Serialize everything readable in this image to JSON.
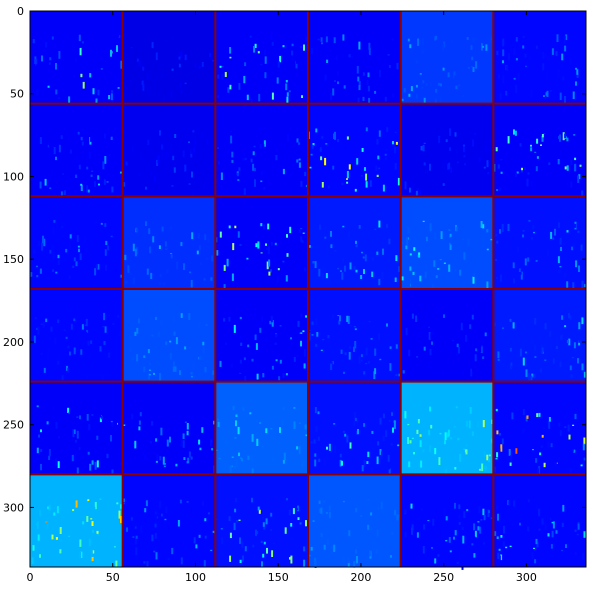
{
  "figure": {
    "type": "feature-map-grid",
    "grid": {
      "rows": 6,
      "cols": 6
    },
    "extent": {
      "x": [
        0,
        336
      ],
      "y": [
        0,
        336
      ]
    },
    "colormap": "jet",
    "grid_line_color": "#8b0000",
    "background_color": "#00007f",
    "x_ticks": [
      0,
      50,
      100,
      150,
      200,
      250,
      300
    ],
    "y_ticks": [
      0,
      50,
      100,
      150,
      200,
      250,
      300
    ],
    "x_tick_labels": [
      "0",
      "50",
      "100",
      "150",
      "200",
      "250",
      "300"
    ],
    "y_tick_labels": [
      "0",
      "50",
      "100",
      "150",
      "200",
      "250",
      "300"
    ],
    "tiles": [
      {
        "row": 0,
        "col": 0,
        "mean": 0.12,
        "peak": 0.55
      },
      {
        "row": 0,
        "col": 1,
        "mean": 0.1,
        "peak": 0.18
      },
      {
        "row": 0,
        "col": 2,
        "mean": 0.12,
        "peak": 0.55
      },
      {
        "row": 0,
        "col": 3,
        "mean": 0.12,
        "peak": 0.3
      },
      {
        "row": 0,
        "col": 4,
        "mean": 0.18,
        "peak": 0.3
      },
      {
        "row": 0,
        "col": 5,
        "mean": 0.13,
        "peak": 0.3
      },
      {
        "row": 1,
        "col": 0,
        "mean": 0.12,
        "peak": 0.35
      },
      {
        "row": 1,
        "col": 1,
        "mean": 0.11,
        "peak": 0.2
      },
      {
        "row": 1,
        "col": 2,
        "mean": 0.12,
        "peak": 0.3
      },
      {
        "row": 1,
        "col": 3,
        "mean": 0.13,
        "peak": 0.65
      },
      {
        "row": 1,
        "col": 4,
        "mean": 0.11,
        "peak": 0.2
      },
      {
        "row": 1,
        "col": 5,
        "mean": 0.12,
        "peak": 0.55
      },
      {
        "row": 2,
        "col": 0,
        "mean": 0.13,
        "peak": 0.3
      },
      {
        "row": 2,
        "col": 1,
        "mean": 0.17,
        "peak": 0.3
      },
      {
        "row": 2,
        "col": 2,
        "mean": 0.12,
        "peak": 0.6
      },
      {
        "row": 2,
        "col": 3,
        "mean": 0.15,
        "peak": 0.35
      },
      {
        "row": 2,
        "col": 4,
        "mean": 0.2,
        "peak": 0.4
      },
      {
        "row": 2,
        "col": 5,
        "mean": 0.14,
        "peak": 0.35
      },
      {
        "row": 3,
        "col": 0,
        "mean": 0.13,
        "peak": 0.25
      },
      {
        "row": 3,
        "col": 1,
        "mean": 0.2,
        "peak": 0.3
      },
      {
        "row": 3,
        "col": 2,
        "mean": 0.12,
        "peak": 0.4
      },
      {
        "row": 3,
        "col": 3,
        "mean": 0.14,
        "peak": 0.3
      },
      {
        "row": 3,
        "col": 4,
        "mean": 0.12,
        "peak": 0.25
      },
      {
        "row": 3,
        "col": 5,
        "mean": 0.15,
        "peak": 0.35
      },
      {
        "row": 4,
        "col": 0,
        "mean": 0.12,
        "peak": 0.4
      },
      {
        "row": 4,
        "col": 1,
        "mean": 0.12,
        "peak": 0.35
      },
      {
        "row": 4,
        "col": 2,
        "mean": 0.22,
        "peak": 0.35
      },
      {
        "row": 4,
        "col": 3,
        "mean": 0.14,
        "peak": 0.45
      },
      {
        "row": 4,
        "col": 4,
        "mean": 0.3,
        "peak": 0.55
      },
      {
        "row": 4,
        "col": 5,
        "mean": 0.13,
        "peak": 0.8
      },
      {
        "row": 5,
        "col": 0,
        "mean": 0.3,
        "peak": 0.75
      },
      {
        "row": 5,
        "col": 1,
        "mean": 0.13,
        "peak": 0.35
      },
      {
        "row": 5,
        "col": 2,
        "mean": 0.14,
        "peak": 0.7
      },
      {
        "row": 5,
        "col": 3,
        "mean": 0.21,
        "peak": 0.3
      },
      {
        "row": 5,
        "col": 4,
        "mean": 0.13,
        "peak": 0.35
      },
      {
        "row": 5,
        "col": 5,
        "mean": 0.13,
        "peak": 0.4
      }
    ]
  }
}
